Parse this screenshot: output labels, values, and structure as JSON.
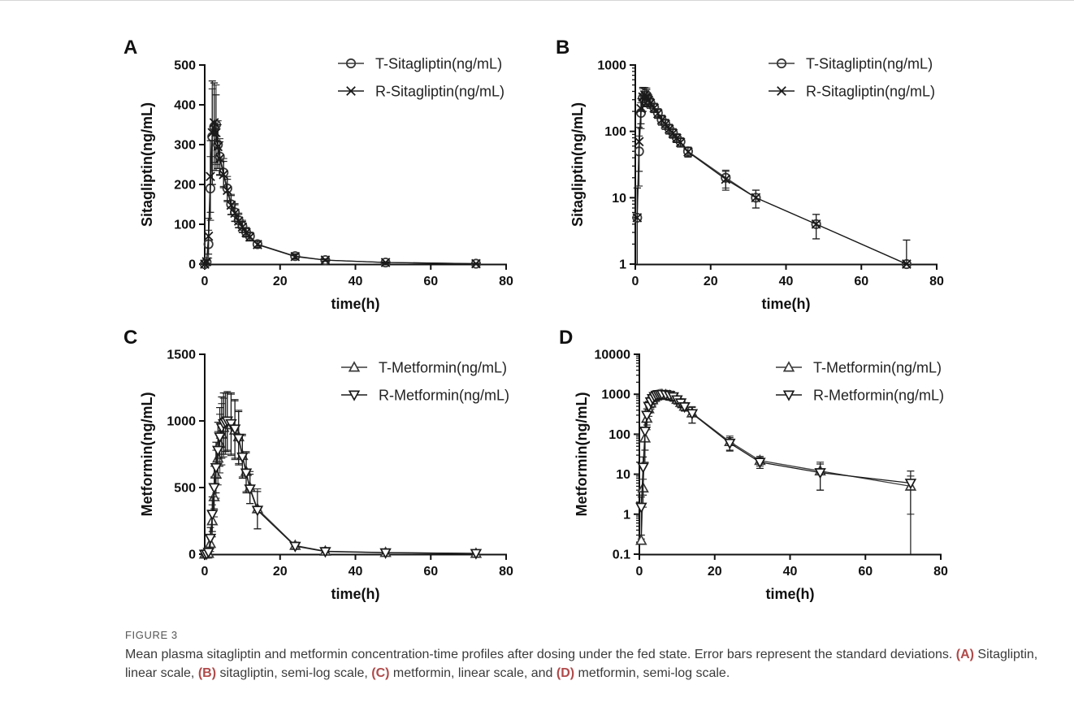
{
  "figure": {
    "label": "FIGURE 3",
    "caption": [
      {
        "t": "Mean plasma sitagliptin and metformin concentration-time profiles after dosing under the fed state. Error bars represent the standard deviations. "
      },
      {
        "t": "(A)",
        "b": true
      },
      {
        "t": " Sitagliptin, linear scale, "
      },
      {
        "t": "(B)",
        "b": true
      },
      {
        "t": " sitagliptin, semi-log scale, "
      },
      {
        "t": "(C)",
        "b": true
      },
      {
        "t": " metformin, linear scale, and "
      },
      {
        "t": "(D)",
        "b": true
      },
      {
        "t": " metformin, semi-log scale."
      }
    ]
  },
  "chart_data": [
    {
      "panel": "A",
      "type": "line",
      "scale": "linear",
      "xlabel": "time(h)",
      "ylabel": "Sitagliptin(ng/mL)",
      "xlim": [
        0,
        80
      ],
      "ylim": [
        0,
        500
      ],
      "xticks": [
        0,
        20,
        40,
        60,
        80
      ],
      "yticks": [
        0,
        100,
        200,
        300,
        400,
        500
      ],
      "ytick_labels": [
        "0",
        "100",
        "200",
        "300",
        "400",
        "500"
      ],
      "legend_position": "top-right",
      "x": [
        0,
        0.5,
        1,
        1.5,
        2,
        2.5,
        3,
        3.5,
        4,
        5,
        6,
        7,
        8,
        9,
        10,
        11,
        12,
        14,
        24,
        32,
        48,
        72
      ],
      "series": [
        {
          "name": "T-Sitagliptin(ng/mL)",
          "marker": "circle",
          "values": [
            0,
            5,
            50,
            190,
            320,
            345,
            350,
            300,
            270,
            230,
            190,
            150,
            130,
            110,
            95,
            80,
            70,
            50,
            20,
            10,
            4,
            1
          ],
          "sd": [
            0,
            4,
            35,
            80,
            120,
            110,
            100,
            60,
            45,
            35,
            30,
            25,
            22,
            18,
            15,
            12,
            10,
            8,
            6,
            3,
            1.5,
            1
          ]
        },
        {
          "name": "R-Sitagliptin(ng/mL)",
          "marker": "cross",
          "values": [
            0,
            6,
            70,
            220,
            330,
            355,
            330,
            295,
            265,
            225,
            185,
            148,
            128,
            108,
            93,
            79,
            68,
            49,
            19,
            10,
            4,
            1
          ],
          "sd": [
            0,
            5,
            45,
            90,
            130,
            100,
            95,
            55,
            42,
            33,
            28,
            24,
            21,
            17,
            14,
            11,
            10,
            8,
            6,
            3,
            1.5,
            1
          ]
        }
      ]
    },
    {
      "panel": "B",
      "type": "line",
      "scale": "log",
      "xlabel": "time(h)",
      "ylabel": "Sitagliptin(ng/mL)",
      "xlim": [
        0,
        80
      ],
      "ylim": [
        1,
        1000
      ],
      "xticks": [
        0,
        20,
        40,
        60,
        80
      ],
      "yticks": [
        1,
        10,
        100,
        1000
      ],
      "ytick_labels": [
        "1",
        "10",
        "100",
        "1000"
      ],
      "legend_position": "top-right",
      "x": [
        0.5,
        1,
        1.5,
        2,
        2.5,
        3,
        3.5,
        4,
        5,
        6,
        7,
        8,
        9,
        10,
        11,
        12,
        14,
        24,
        32,
        48,
        72
      ],
      "series": [
        {
          "name": "T-Sitagliptin(ng/mL)",
          "marker": "circle",
          "values": [
            5,
            50,
            190,
            320,
            345,
            350,
            300,
            270,
            230,
            190,
            150,
            130,
            110,
            95,
            80,
            70,
            50,
            20,
            10,
            4,
            1
          ],
          "sd": [
            9,
            35,
            80,
            120,
            110,
            100,
            60,
            45,
            35,
            30,
            25,
            22,
            18,
            15,
            12,
            10,
            8,
            6,
            3,
            1.6,
            1.3
          ]
        },
        {
          "name": "R-Sitagliptin(ng/mL)",
          "marker": "cross",
          "values": [
            5,
            70,
            220,
            330,
            355,
            330,
            295,
            265,
            225,
            185,
            148,
            128,
            108,
            93,
            79,
            68,
            49,
            19,
            10,
            4,
            1
          ],
          "sd": [
            9,
            45,
            90,
            130,
            100,
            95,
            55,
            42,
            33,
            28,
            24,
            21,
            17,
            14,
            11,
            10,
            8,
            6,
            3,
            1.6,
            1.3
          ]
        }
      ]
    },
    {
      "panel": "C",
      "type": "line",
      "scale": "linear",
      "xlabel": "time(h)",
      "ylabel": "Metformin(ng/mL)",
      "xlim": [
        0,
        80
      ],
      "ylim": [
        0,
        1500
      ],
      "xticks": [
        0,
        20,
        40,
        60,
        80
      ],
      "yticks": [
        0,
        500,
        1000,
        1500
      ],
      "ytick_labels": [
        "0",
        "500",
        "1000",
        "1500"
      ],
      "legend_position": "top-right",
      "x": [
        0,
        0.5,
        1,
        1.5,
        2,
        2.5,
        3,
        3.5,
        4,
        4.5,
        5,
        5.5,
        6,
        7,
        8,
        9,
        10,
        11,
        12,
        14,
        24,
        32,
        48,
        72
      ],
      "series": [
        {
          "name": "T-Metformin(ng/mL)",
          "marker": "triangle-up",
          "values": [
            0,
            0.2,
            5,
            80,
            250,
            430,
            600,
            720,
            830,
            900,
            950,
            980,
            990,
            970,
            930,
            880,
            740,
            620,
            500,
            340,
            65,
            22,
            12,
            5
          ],
          "sd": [
            0,
            0.3,
            8,
            60,
            120,
            150,
            180,
            200,
            220,
            230,
            220,
            230,
            220,
            230,
            220,
            200,
            160,
            150,
            120,
            150,
            25,
            8,
            8,
            6
          ]
        },
        {
          "name": "R-Metformin(ng/mL)",
          "marker": "triangle-down",
          "values": [
            0,
            1.5,
            15,
            120,
            300,
            500,
            650,
            780,
            880,
            950,
            980,
            990,
            1000,
            980,
            940,
            870,
            730,
            610,
            490,
            330,
            60,
            20,
            11,
            6
          ],
          "sd": [
            0,
            2,
            15,
            80,
            130,
            160,
            190,
            210,
            220,
            230,
            230,
            220,
            220,
            230,
            220,
            200,
            160,
            150,
            110,
            140,
            22,
            8,
            7,
            6
          ]
        }
      ]
    },
    {
      "panel": "D",
      "type": "line",
      "scale": "log",
      "xlabel": "time(h)",
      "ylabel": "Metformin(ng/mL)",
      "xlim": [
        0,
        80
      ],
      "ylim": [
        0.1,
        10000
      ],
      "xticks": [
        0,
        20,
        40,
        60,
        80
      ],
      "yticks": [
        0.1,
        1,
        10,
        100,
        1000,
        10000
      ],
      "ytick_labels": [
        "0.1",
        "1",
        "10",
        "100",
        "1000",
        "10000"
      ],
      "legend_position": "top-right",
      "x": [
        0.5,
        1,
        1.5,
        2,
        2.5,
        3,
        3.5,
        4,
        4.5,
        5,
        5.5,
        6,
        7,
        8,
        9,
        10,
        11,
        12,
        14,
        24,
        32,
        48,
        72
      ],
      "series": [
        {
          "name": "T-Metformin(ng/mL)",
          "marker": "triangle-up",
          "values": [
            0.22,
            4.5,
            80,
            250,
            430,
            600,
            720,
            830,
            900,
            950,
            980,
            990,
            970,
            930,
            880,
            740,
            620,
            500,
            340,
            65,
            22,
            12,
            5
          ],
          "sd": [
            0.02,
            3,
            60,
            120,
            150,
            180,
            200,
            220,
            230,
            220,
            230,
            220,
            230,
            220,
            200,
            160,
            150,
            120,
            150,
            25,
            6,
            8,
            4
          ]
        },
        {
          "name": "R-Metformin(ng/mL)",
          "marker": "triangle-down",
          "values": [
            1.5,
            15,
            120,
            300,
            500,
            650,
            780,
            880,
            950,
            980,
            990,
            1000,
            980,
            940,
            870,
            730,
            610,
            490,
            330,
            60,
            20,
            11,
            6
          ],
          "sd": [
            1.2,
            12,
            80,
            130,
            160,
            190,
            210,
            220,
            230,
            230,
            220,
            220,
            230,
            220,
            200,
            160,
            150,
            110,
            140,
            22,
            6,
            7,
            6
          ]
        }
      ]
    }
  ]
}
